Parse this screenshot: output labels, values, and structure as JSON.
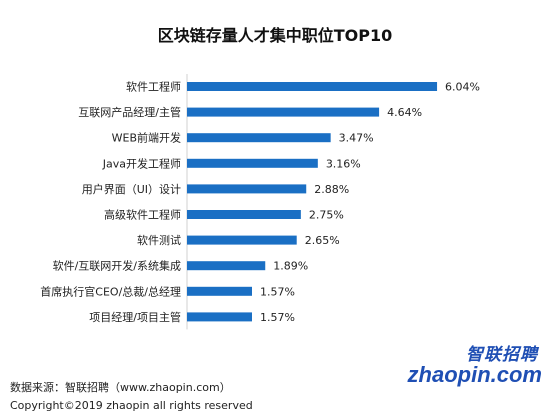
{
  "header": {
    "title": "区块链存量人才集中职位TOP10"
  },
  "chart_data": {
    "type": "bar",
    "orientation": "horizontal",
    "title": "区块链存量人才集中职位TOP10",
    "categories": [
      "软件工程师",
      "互联网产品经理/主管",
      "WEB前端开发",
      "Java开发工程师",
      "用户界面（UI）设计",
      "高级软件工程师",
      "软件测试",
      "软件/互联网开发/系统集成",
      "首席执行官CEO/总裁/总经理",
      "项目经理/项目主管"
    ],
    "values": [
      6.04,
      4.64,
      3.47,
      3.16,
      2.88,
      2.75,
      2.65,
      1.89,
      1.57,
      1.57
    ],
    "value_labels": [
      "6.04%",
      "4.64%",
      "3.47%",
      "3.16%",
      "2.88%",
      "2.75%",
      "2.65%",
      "1.89%",
      "1.57%",
      "1.57%"
    ],
    "unit": "%",
    "bar_color": "#1a6fc4",
    "grid": false
  },
  "footer": {
    "source": "数据来源：智联招聘（www.zhaopin.com）",
    "copyright": "Copyright©2019 zhaopin all rights reserved"
  },
  "logo": {
    "cn": "智联招聘",
    "en": "zhaopin.com",
    "color": "#1f4fb4"
  }
}
